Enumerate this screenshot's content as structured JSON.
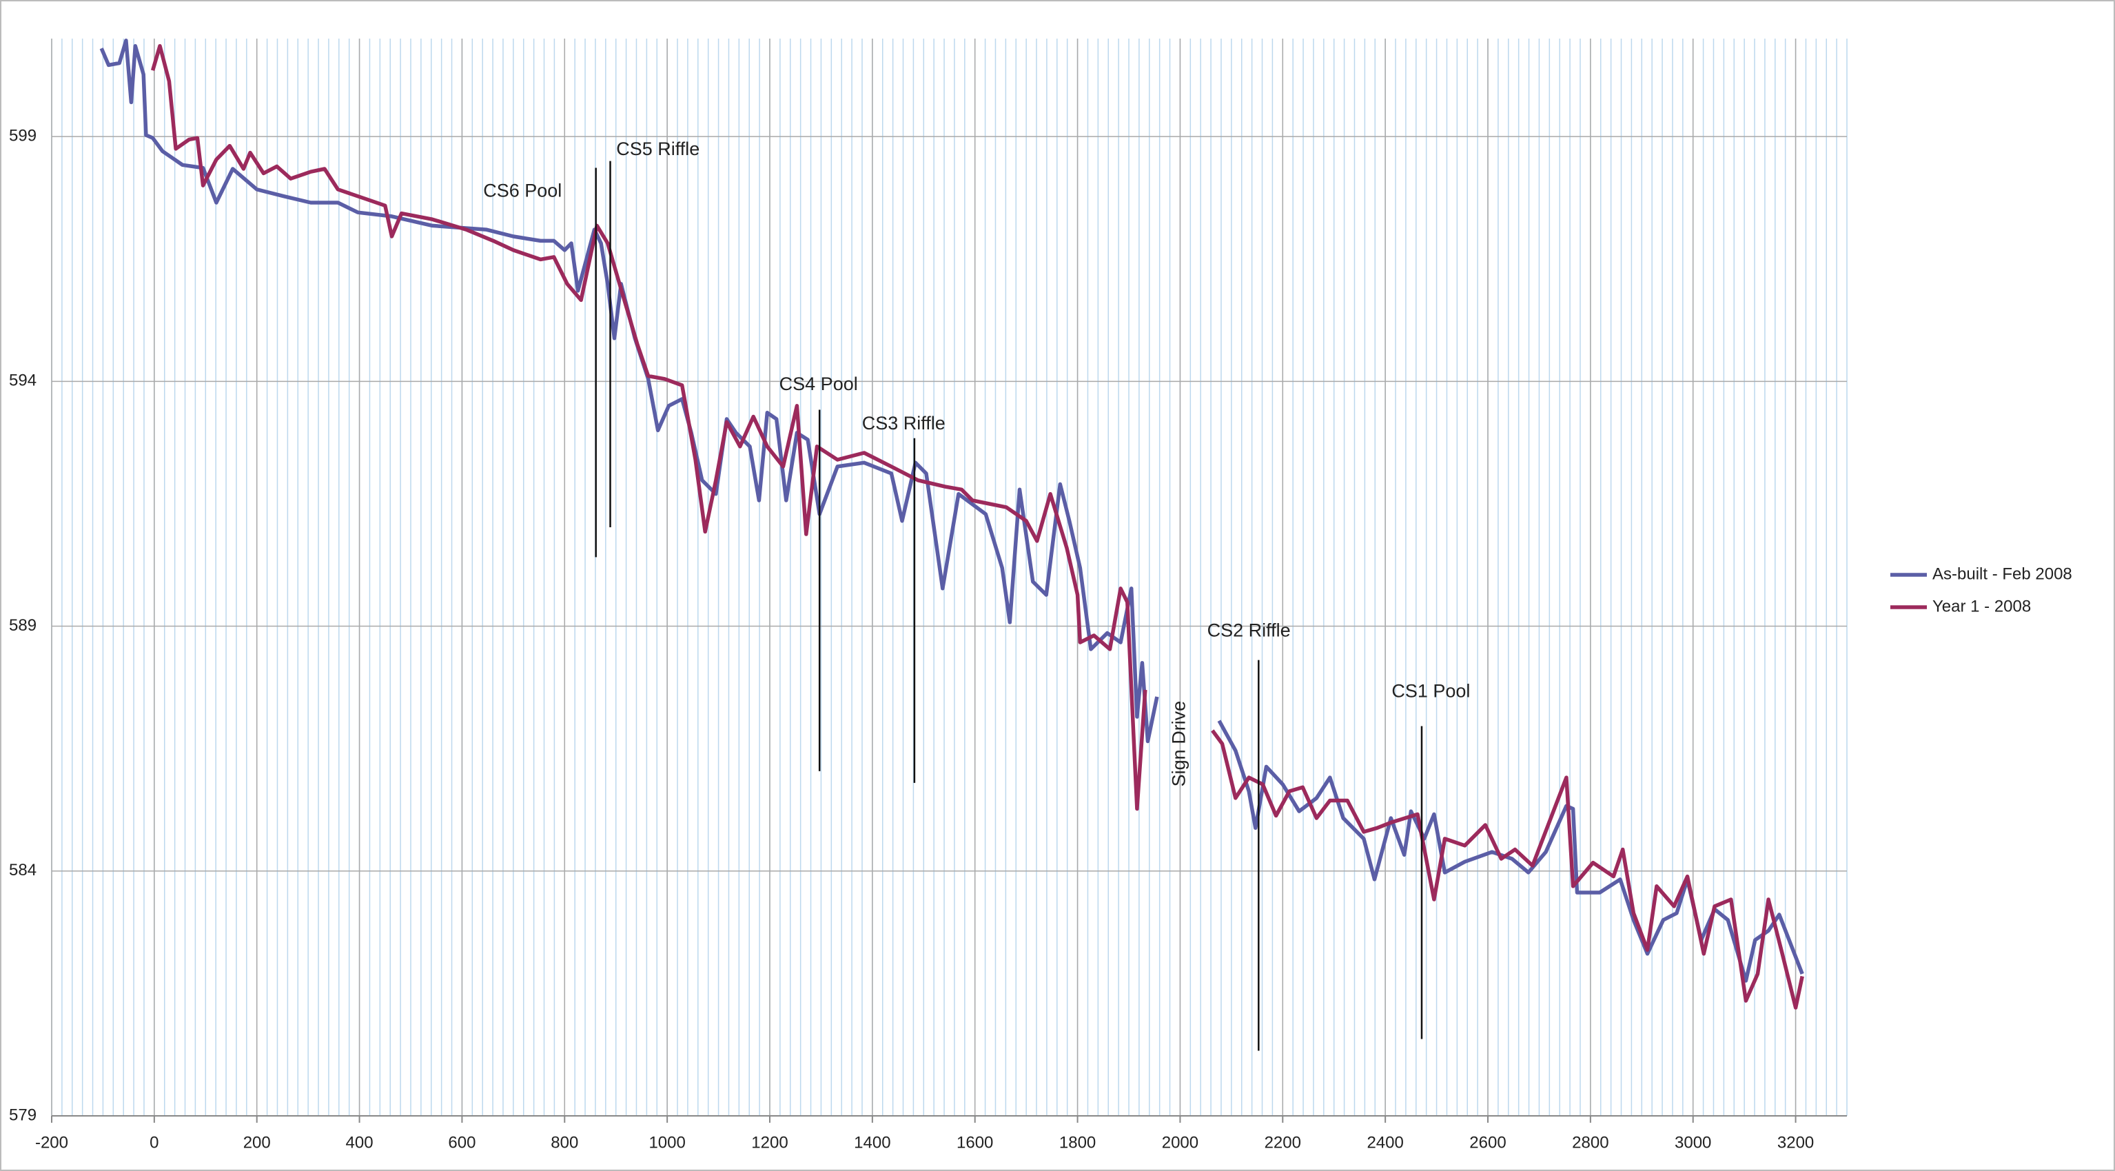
{
  "chart_data": {
    "type": "line",
    "xlim": [
      -200,
      3300
    ],
    "xticks": [
      -200,
      0,
      200,
      400,
      600,
      800,
      1000,
      1200,
      1400,
      1600,
      1800,
      2000,
      2200,
      2400,
      2600,
      2800,
      3000,
      3200
    ],
    "xminor_interval": 20,
    "ylim": [
      579,
      601
    ],
    "yticks": [
      579,
      584,
      589,
      594,
      599
    ],
    "grid": true,
    "legend": "right",
    "series": [
      {
        "name": "As-built - Feb 2008",
        "color": "#5b5ea6",
        "x": [
          -103,
          -89,
          -68,
          -55,
          -45,
          -37,
          -21,
          -16,
          -3,
          16,
          55,
          95,
          121,
          153,
          200,
          253,
          305,
          358,
          397,
          463,
          542,
          647,
          700,
          753,
          779,
          800,
          813,
          826,
          858,
          871,
          884,
          897,
          910,
          937,
          963,
          982,
          1003,
          1029,
          1047,
          1068,
          1095,
          1116,
          1134,
          1161,
          1179,
          1195,
          1213,
          1232,
          1253,
          1274,
          1297,
          1332,
          1384,
          1437,
          1458,
          1484,
          1505,
          1537,
          1568,
          1621,
          1653,
          1668,
          1687,
          1713,
          1739,
          1766,
          1784,
          1805,
          1826,
          1858,
          1884,
          1905,
          1916,
          1926,
          1937,
          1955,
          2010,
          2076,
          2108,
          2134,
          2147,
          2168,
          2200,
          2232,
          2266,
          2292,
          2318,
          2358,
          2379,
          2411,
          2437,
          2450,
          2476,
          2495,
          2516,
          2555,
          2608,
          2647,
          2679,
          2713,
          2753,
          2766,
          2774,
          2818,
          2858,
          2884,
          2911,
          2942,
          2968,
          2989,
          3016,
          3042,
          3068,
          3103,
          3121,
          3147,
          3168,
          3213
        ],
        "values": [
          600.8,
          600.46,
          600.5,
          600.96,
          599.7,
          600.85,
          600.27,
          599.03,
          598.97,
          598.7,
          598.42,
          598.36,
          597.65,
          598.34,
          597.92,
          597.78,
          597.65,
          597.65,
          597.45,
          597.37,
          597.18,
          597.1,
          596.96,
          596.87,
          596.87,
          596.68,
          596.82,
          595.85,
          597.1,
          596.82,
          595.99,
          594.88,
          595.99,
          594.88,
          594.05,
          593.0,
          593.5,
          593.64,
          592.95,
          591.98,
          591.7,
          593.23,
          592.95,
          592.67,
          591.57,
          593.36,
          593.23,
          591.57,
          592.95,
          592.81,
          591.29,
          592.26,
          592.34,
          592.12,
          591.15,
          592.34,
          592.12,
          589.77,
          591.7,
          591.29,
          590.19,
          589.08,
          591.79,
          589.91,
          589.64,
          591.9,
          591.15,
          590.19,
          588.53,
          588.86,
          588.67,
          589.77,
          587.15,
          588.25,
          586.65,
          587.56,
          null,
          587.07,
          586.46,
          585.63,
          584.88,
          586.13,
          585.77,
          585.22,
          585.49,
          585.91,
          585.08,
          584.66,
          583.83,
          585.08,
          584.33,
          585.22,
          584.66,
          585.16,
          583.97,
          584.19,
          584.39,
          584.25,
          583.97,
          584.39,
          585.33,
          585.27,
          583.56,
          583.56,
          583.83,
          583.0,
          582.31,
          583.0,
          583.14,
          583.83,
          582.59,
          583.22,
          583.0,
          581.76,
          582.59,
          582.78,
          583.11,
          581.9
        ]
      },
      {
        "name": "Year 1 - 2008",
        "color": "#9c2a5c",
        "x": [
          -3,
          11,
          29,
          42,
          68,
          84,
          95,
          121,
          147,
          174,
          187,
          213,
          239,
          266,
          305,
          332,
          358,
          411,
          450,
          463,
          482,
          542,
          608,
          661,
          700,
          753,
          779,
          805,
          832,
          863,
          884,
          911,
          942,
          963,
          995,
          1029,
          1055,
          1074,
          1095,
          1116,
          1142,
          1168,
          1195,
          1226,
          1253,
          1271,
          1292,
          1332,
          1384,
          1437,
          1489,
          1542,
          1574,
          1595,
          1661,
          1700,
          1721,
          1747,
          1779,
          1800,
          1805,
          1832,
          1863,
          1884,
          1897,
          1916,
          1932,
          2000,
          2063,
          2082,
          2108,
          2134,
          2161,
          2187,
          2213,
          2239,
          2266,
          2292,
          2326,
          2358,
          2384,
          2411,
          2463,
          2495,
          2516,
          2555,
          2595,
          2626,
          2653,
          2687,
          2753,
          2766,
          2805,
          2845,
          2863,
          2884,
          2911,
          2929,
          2963,
          2989,
          3021,
          3042,
          3074,
          3103,
          3126,
          3147,
          3174,
          3200,
          3213
        ],
        "values": [
          600.35,
          600.85,
          600.13,
          598.75,
          598.94,
          598.97,
          598.0,
          598.53,
          598.81,
          598.34,
          598.67,
          598.25,
          598.39,
          598.14,
          598.28,
          598.34,
          597.92,
          597.73,
          597.59,
          596.96,
          597.43,
          597.31,
          597.1,
          596.87,
          596.68,
          596.49,
          596.54,
          595.99,
          595.66,
          597.18,
          596.82,
          595.85,
          594.75,
          594.11,
          594.05,
          593.92,
          592.4,
          590.93,
          591.98,
          593.17,
          592.67,
          593.28,
          592.67,
          592.26,
          593.5,
          590.88,
          592.67,
          592.4,
          592.54,
          592.26,
          591.98,
          591.85,
          591.79,
          591.57,
          591.43,
          591.15,
          590.74,
          591.7,
          590.6,
          589.64,
          588.67,
          588.81,
          588.53,
          589.77,
          589.49,
          585.27,
          587.7,
          null,
          586.87,
          586.6,
          585.49,
          585.91,
          585.77,
          585.13,
          585.63,
          585.71,
          585.08,
          585.44,
          585.44,
          584.8,
          584.88,
          584.99,
          585.16,
          583.42,
          584.66,
          584.52,
          584.94,
          584.25,
          584.44,
          584.11,
          585.91,
          583.69,
          584.17,
          583.89,
          584.44,
          583.14,
          582.39,
          583.69,
          583.28,
          583.89,
          582.31,
          583.28,
          583.42,
          581.35,
          581.9,
          583.42,
          582.31,
          581.21,
          581.85
        ]
      }
    ],
    "annotations": [
      {
        "text": "CS6 Pool",
        "x": 718,
        "y": 597.87
      },
      {
        "text": "CS5 Riffle",
        "x": 982,
        "y": 598.72
      },
      {
        "text": "CS4 Pool",
        "x": 1295,
        "y": 593.92
      },
      {
        "text": "CS3 Riffle",
        "x": 1461,
        "y": 593.12
      },
      {
        "text": "Sign Drive",
        "x": 2000,
        "y": 586.6,
        "rotation": -90
      },
      {
        "text": "CS2 Riffle",
        "x": 2134,
        "y": 588.89
      },
      {
        "text": "CS1 Pool",
        "x": 2489,
        "y": 587.65
      }
    ],
    "markers": [
      {
        "x": 861,
        "ymin": 590.41,
        "ymax": 598.36
      },
      {
        "x": 889,
        "ymin": 591.02,
        "ymax": 598.5
      },
      {
        "x": 1297,
        "ymin": 586.04,
        "ymax": 593.42
      },
      {
        "x": 1482,
        "ymin": 585.8,
        "ymax": 592.84
      },
      {
        "x": 2153,
        "ymin": 580.33,
        "ymax": 588.31
      },
      {
        "x": 2471,
        "ymin": 580.57,
        "ymax": 586.96
      }
    ]
  }
}
